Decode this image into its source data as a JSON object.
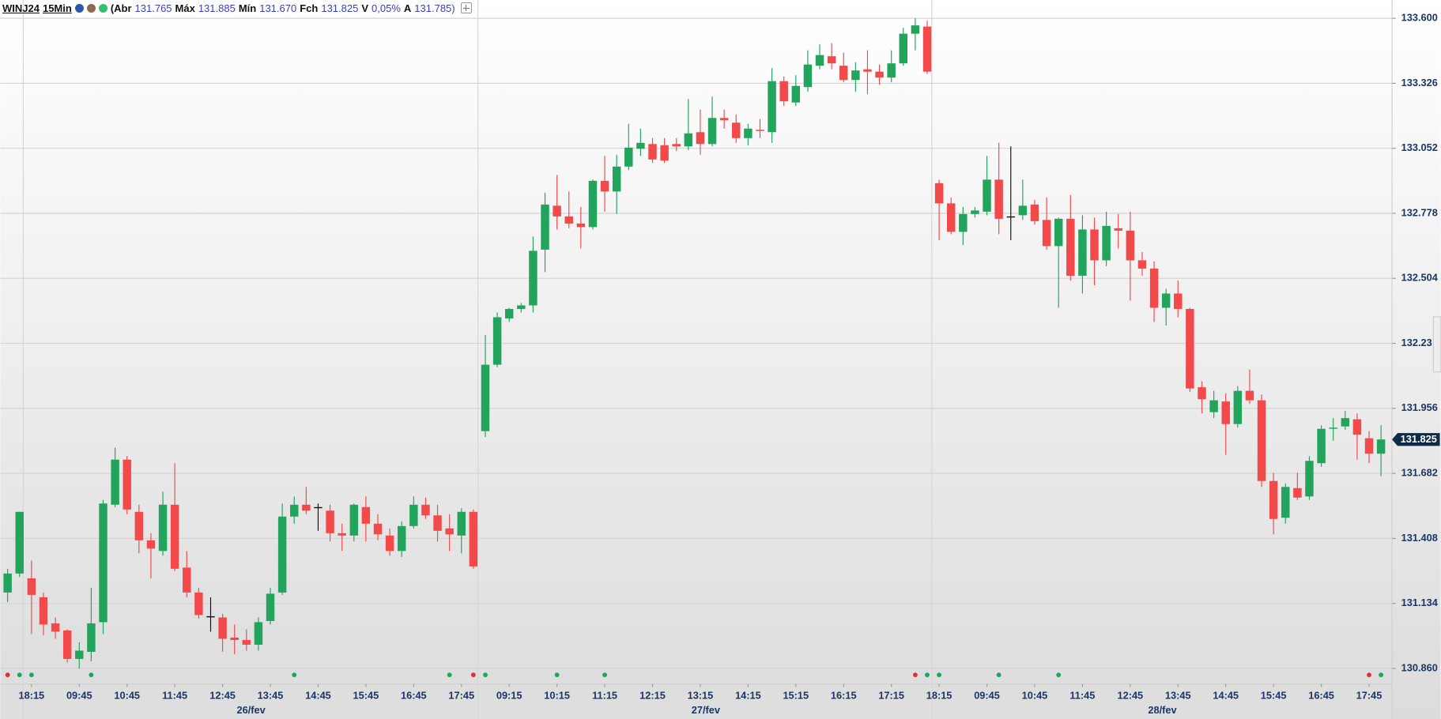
{
  "header": {
    "symbol": "WINJ24",
    "interval": "15Min",
    "open_label": "(Abr",
    "open": "131.765",
    "high_label": "Máx",
    "high": "131.885",
    "low_label": "Mín",
    "low": "131.670",
    "close_label": "Fch",
    "close": "131.825",
    "var_label": "V",
    "var": "0,05%",
    "ask_label": "A",
    "ask": "131.785",
    "close_paren": ")"
  },
  "chart_data": {
    "type": "candlestick",
    "categories": [
      null,
      null,
      "18:15",
      null,
      null,
      null,
      "09:45",
      null,
      null,
      null,
      "10:45",
      null,
      null,
      null,
      "11:45",
      null,
      null,
      null,
      "12:45",
      null,
      null,
      null,
      "13:45",
      null,
      null,
      null,
      "14:45",
      null,
      null,
      null,
      "15:45",
      null,
      null,
      null,
      "16:45",
      null,
      null,
      null,
      "17:45",
      null,
      null,
      null,
      "09:15",
      null,
      null,
      null,
      "10:15",
      null,
      null,
      null,
      "11:15",
      null,
      null,
      null,
      "12:15",
      null,
      null,
      null,
      "13:15",
      null,
      null,
      null,
      "14:15",
      null,
      null,
      null,
      "15:15",
      null,
      null,
      null,
      "16:15",
      null,
      null,
      null,
      "17:15",
      null,
      null,
      null,
      "18:15",
      null,
      null,
      null,
      "09:45",
      null,
      null,
      null,
      "10:45",
      null,
      null,
      null,
      "11:45",
      null,
      null,
      null,
      "12:45",
      null,
      null,
      null,
      "13:45",
      null,
      null,
      null,
      "14:45",
      null,
      null,
      null,
      "15:45",
      null,
      null,
      null,
      "16:45",
      null,
      null,
      null,
      "17:45",
      null
    ],
    "date_labels": [
      "26/fev",
      "27/fev",
      "28/fev"
    ],
    "open": [
      131.18,
      131.26,
      131.24,
      131.16,
      131.05,
      131.02,
      130.9,
      130.93,
      131.055,
      131.55,
      131.74,
      131.52,
      131.4,
      131.355,
      131.55,
      131.285,
      131.18,
      131.08,
      131.075,
      130.99,
      130.98,
      130.96,
      131.06,
      131.18,
      131.5,
      131.55,
      131.54,
      131.525,
      131.43,
      131.42,
      131.54,
      131.47,
      131.42,
      131.355,
      131.46,
      131.55,
      131.505,
      131.45,
      131.42,
      131.52,
      131.86,
      132.14,
      132.335,
      132.375,
      132.39,
      132.625,
      132.81,
      132.765,
      132.735,
      132.72,
      132.915,
      132.87,
      132.975,
      133.05,
      133.07,
      133.065,
      133.07,
      133.06,
      133.12,
      133.07,
      133.18,
      133.16,
      133.095,
      133.13,
      133.12,
      133.335,
      133.245,
      133.31,
      133.4,
      133.44,
      133.4,
      133.34,
      133.385,
      133.375,
      133.35,
      133.41,
      133.535,
      133.565,
      132.905,
      132.82,
      132.7,
      132.775,
      132.785,
      132.92,
      132.765,
      132.77,
      132.815,
      132.75,
      132.64,
      132.755,
      132.515,
      132.71,
      132.58,
      132.715,
      132.705,
      132.58,
      132.545,
      132.38,
      132.44,
      132.375,
      132.045,
      131.94,
      131.985,
      131.89,
      132.03,
      131.99,
      131.65,
      131.495,
      131.62,
      131.585,
      131.725,
      131.87,
      131.88,
      131.91,
      131.83,
      131.765
    ],
    "high": [
      131.28,
      131.52,
      131.315,
      131.18,
      131.075,
      131.025,
      130.97,
      131.2,
      131.57,
      131.79,
      131.755,
      131.55,
      131.43,
      131.605,
      131.725,
      131.355,
      131.2,
      131.16,
      131.09,
      131.045,
      131.025,
      131.075,
      131.2,
      131.555,
      131.585,
      131.625,
      131.555,
      131.55,
      131.47,
      131.555,
      131.585,
      131.51,
      131.45,
      131.48,
      131.585,
      131.58,
      131.55,
      131.51,
      131.535,
      131.53,
      132.265,
      132.36,
      132.38,
      132.4,
      132.68,
      132.865,
      132.94,
      132.87,
      132.805,
      132.92,
      133.02,
      133.025,
      133.155,
      133.135,
      133.095,
      133.095,
      133.095,
      133.26,
      133.215,
      133.27,
      133.215,
      133.195,
      133.155,
      133.175,
      133.39,
      133.355,
      133.36,
      133.465,
      133.49,
      133.495,
      133.455,
      133.415,
      133.465,
      133.405,
      133.465,
      133.56,
      133.6,
      133.59,
      132.92,
      132.845,
      132.805,
      132.805,
      133.02,
      133.075,
      133.06,
      132.92,
      132.835,
      132.845,
      132.76,
      132.855,
      132.77,
      132.76,
      132.785,
      132.775,
      132.785,
      132.615,
      132.575,
      132.46,
      132.495,
      132.38,
      132.07,
      132.03,
      132.02,
      132.05,
      132.12,
      132.015,
      131.685,
      131.64,
      131.685,
      131.755,
      131.885,
      131.915,
      131.945,
      131.935,
      131.86,
      131.885
    ],
    "low": [
      131.14,
      131.245,
      131.005,
      131.0,
      130.985,
      130.885,
      130.86,
      130.89,
      131.005,
      131.54,
      131.51,
      131.345,
      131.24,
      131.335,
      131.27,
      131.16,
      131.07,
      131.015,
      130.93,
      130.92,
      130.935,
      130.935,
      131.045,
      131.17,
      131.47,
      131.51,
      131.44,
      131.395,
      131.355,
      131.395,
      131.395,
      131.4,
      131.335,
      131.33,
      131.45,
      131.49,
      131.395,
      131.355,
      131.345,
      131.28,
      131.835,
      132.13,
      132.32,
      132.36,
      132.36,
      132.53,
      132.71,
      132.715,
      132.63,
      132.71,
      132.785,
      132.775,
      132.96,
      133.02,
      132.99,
      132.99,
      133.04,
      133.045,
      133.025,
      133.06,
      133.135,
      133.075,
      133.065,
      133.095,
      133.075,
      133.23,
      133.23,
      133.29,
      133.385,
      133.385,
      133.33,
      133.29,
      133.28,
      133.32,
      133.33,
      133.4,
      133.465,
      133.365,
      132.665,
      132.69,
      132.645,
      132.76,
      132.77,
      132.69,
      132.665,
      132.75,
      132.73,
      132.625,
      132.38,
      132.495,
      132.44,
      132.475,
      132.555,
      132.63,
      132.41,
      132.515,
      132.32,
      132.305,
      132.34,
      132.025,
      131.935,
      131.915,
      131.76,
      131.875,
      131.975,
      131.625,
      131.425,
      131.47,
      131.57,
      131.57,
      131.71,
      131.82,
      131.865,
      131.74,
      131.725,
      131.67
    ],
    "close": [
      131.26,
      131.52,
      131.17,
      131.045,
      131.015,
      130.9,
      130.935,
      131.05,
      131.555,
      131.74,
      131.53,
      131.4,
      131.365,
      131.55,
      131.28,
      131.18,
      131.085,
      131.08,
      130.985,
      130.98,
      130.96,
      131.055,
      131.175,
      131.5,
      131.55,
      131.525,
      131.54,
      131.43,
      131.42,
      131.55,
      131.47,
      131.425,
      131.355,
      131.46,
      131.55,
      131.505,
      131.44,
      131.425,
      131.52,
      131.29,
      132.14,
      132.34,
      132.375,
      132.39,
      132.62,
      132.815,
      132.765,
      132.735,
      132.72,
      132.915,
      132.87,
      132.975,
      133.055,
      133.075,
      133.005,
      133.0,
      133.06,
      133.115,
      133.07,
      133.18,
      133.17,
      133.095,
      133.135,
      133.125,
      133.335,
      133.25,
      133.315,
      133.405,
      133.445,
      133.41,
      133.34,
      133.38,
      133.375,
      133.35,
      133.41,
      133.535,
      133.57,
      133.375,
      132.82,
      132.7,
      132.775,
      132.79,
      132.92,
      132.755,
      132.765,
      132.81,
      132.745,
      132.64,
      132.755,
      132.515,
      132.71,
      132.58,
      132.725,
      132.705,
      132.58,
      132.545,
      132.38,
      132.44,
      132.375,
      132.04,
      131.995,
      131.99,
      131.89,
      132.03,
      131.99,
      131.65,
      131.49,
      131.625,
      131.58,
      131.735,
      131.87,
      131.875,
      131.915,
      131.845,
      131.765,
      131.825
    ],
    "up_color": "#22a45d",
    "down_color": "#f24a4a",
    "flat_color": "#111111",
    "ylim": [
      130.794,
      133.677
    ],
    "yticks": [
      {
        "value": 130.86,
        "label": "130.860"
      },
      131.134,
      131.408,
      131.682,
      131.956,
      132.23,
      132.504,
      132.778,
      133.052,
      133.326,
      {
        "value": 133.6,
        "label": "133.600"
      }
    ],
    "grid": true
  }
}
